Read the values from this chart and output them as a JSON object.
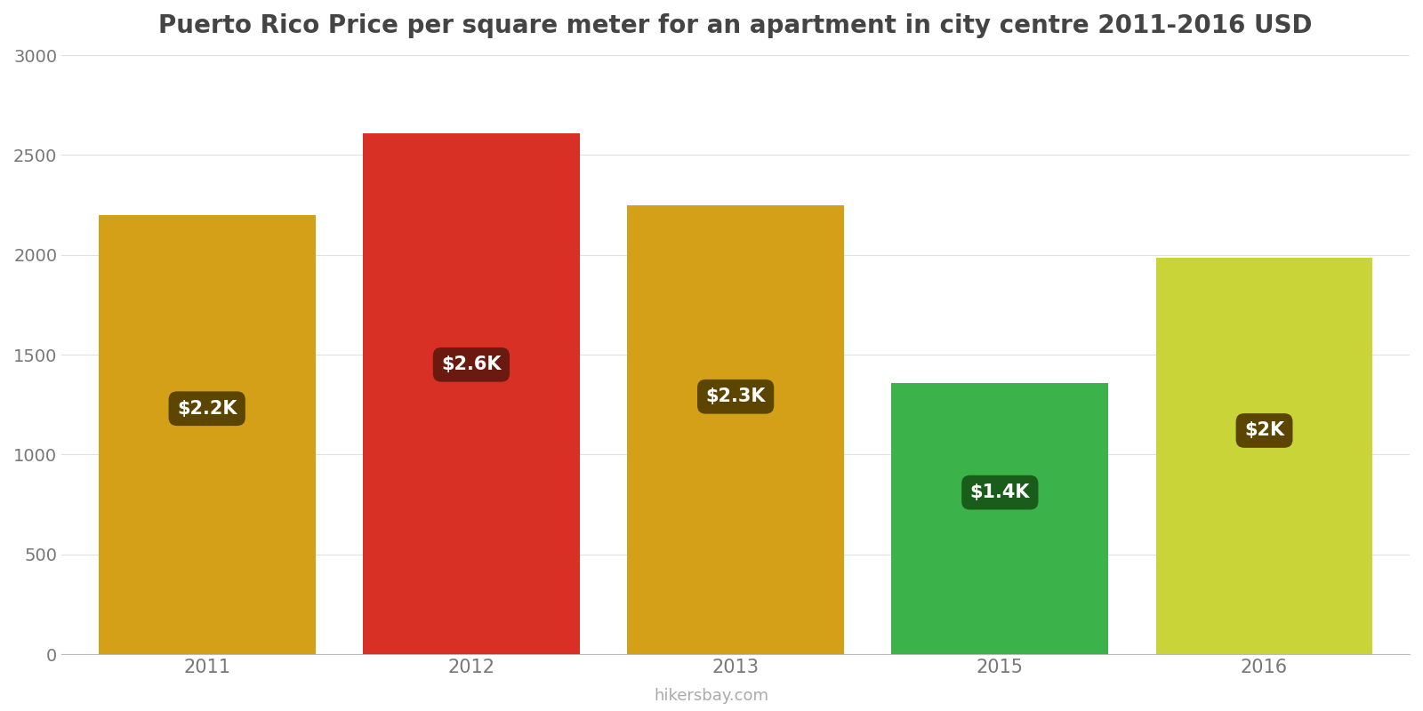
{
  "title": "Puerto Rico Price per square meter for an apartment in city centre 2011-2016 USD",
  "years": [
    "2011",
    "2012",
    "2013",
    "2015",
    "2016"
  ],
  "values": [
    2200,
    2610,
    2250,
    1360,
    1985
  ],
  "bar_colors": [
    "#D4A017",
    "#D93025",
    "#D4A017",
    "#3CB34A",
    "#C8D437"
  ],
  "label_texts": [
    "$2.2K",
    "$2.6K",
    "$2.3K",
    "$1.4K",
    "$2K"
  ],
  "label_bg_colors": [
    "#5C4500",
    "#6B1A10",
    "#5C4500",
    "#1A5C1A",
    "#5C4500"
  ],
  "ylim": [
    0,
    3000
  ],
  "yticks": [
    0,
    500,
    1000,
    1500,
    2000,
    2500,
    3000
  ],
  "label_y_positions": [
    1230,
    1450,
    1290,
    810,
    1120
  ],
  "watermark": "hikersbay.com",
  "title_fontsize": 20,
  "background_color": "#ffffff"
}
